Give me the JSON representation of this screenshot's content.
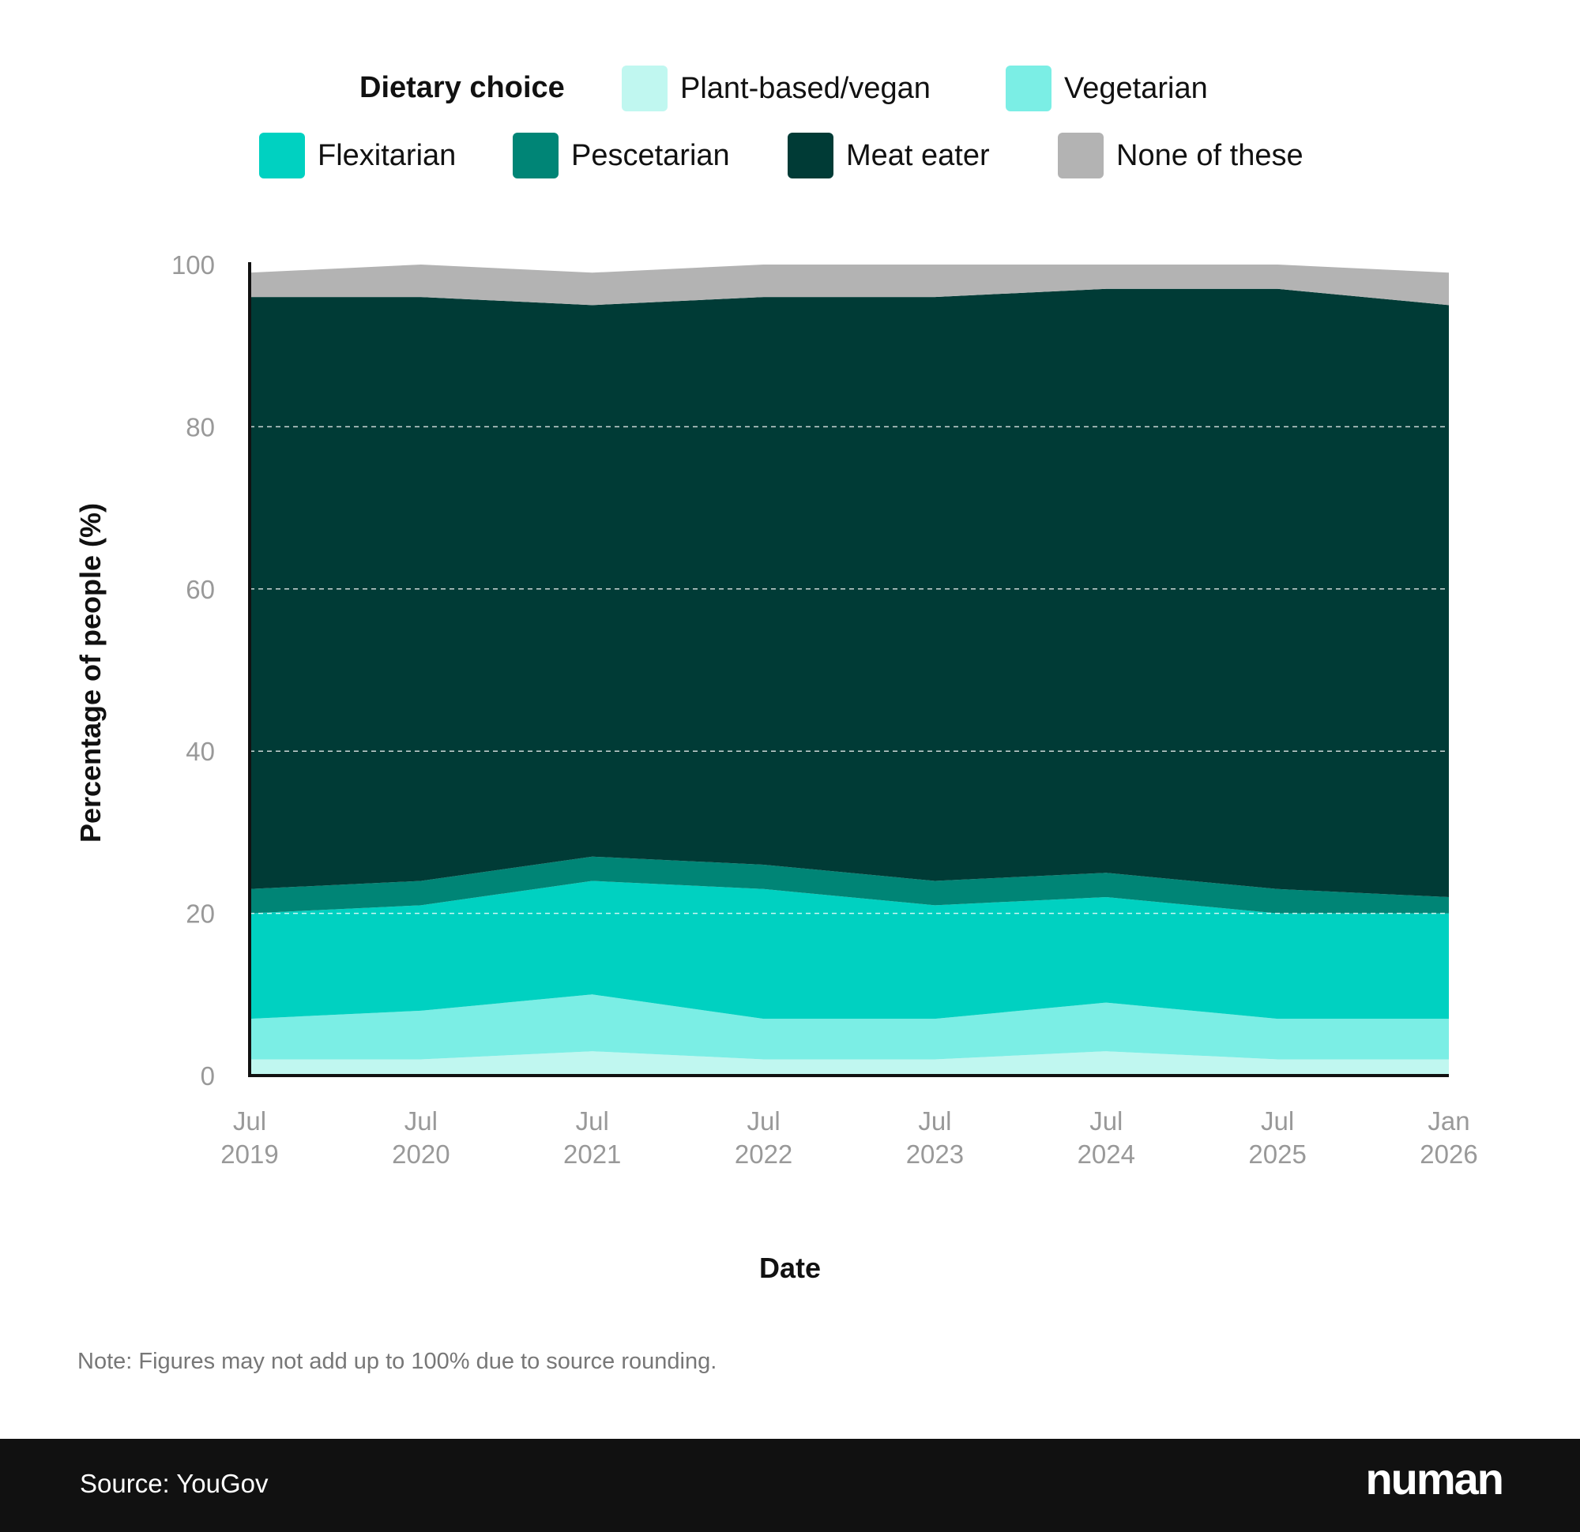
{
  "chart_data": {
    "type": "area",
    "stacked": true,
    "xlabel": "Date",
    "ylabel": "Percentage of people (%)",
    "ylim": [
      0,
      100
    ],
    "yticks": [
      0,
      20,
      40,
      60,
      80,
      100
    ],
    "grid": "horizontal dashed",
    "legend_title": "Dietary choice",
    "legend_placement": "top",
    "categories": [
      [
        "Jul",
        "2019"
      ],
      [
        "Jul",
        "2020"
      ],
      [
        "Jul",
        "2021"
      ],
      [
        "Jul",
        "2022"
      ],
      [
        "Jul",
        "2023"
      ],
      [
        "Jul",
        "2024"
      ],
      [
        "Jul",
        "2025"
      ],
      [
        "Jan",
        "2026"
      ]
    ],
    "series": [
      {
        "name": "Plant-based/vegan",
        "color": "#c0f7f0",
        "values": [
          2,
          2,
          3,
          2,
          2,
          3,
          2,
          2
        ]
      },
      {
        "name": "Vegetarian",
        "color": "#7beee5",
        "values": [
          5,
          6,
          7,
          5,
          5,
          6,
          5,
          5
        ]
      },
      {
        "name": "Flexitarian",
        "color": "#00d1c1",
        "values": [
          13,
          13,
          14,
          16,
          14,
          13,
          13,
          13
        ]
      },
      {
        "name": "Pescetarian",
        "color": "#008576",
        "values": [
          3,
          3,
          3,
          3,
          3,
          3,
          3,
          2
        ]
      },
      {
        "name": "Meat eater",
        "color": "#003b36",
        "values": [
          73,
          72,
          68,
          70,
          72,
          72,
          74,
          73
        ]
      },
      {
        "name": "None of these",
        "color": "#b3b3b3",
        "values": [
          3,
          4,
          4,
          4,
          4,
          3,
          3,
          4
        ]
      }
    ]
  },
  "note": "Note: Figures may not add up to 100% due to source rounding.",
  "footer": {
    "source": "Source: YouGov",
    "logo": "numan"
  }
}
